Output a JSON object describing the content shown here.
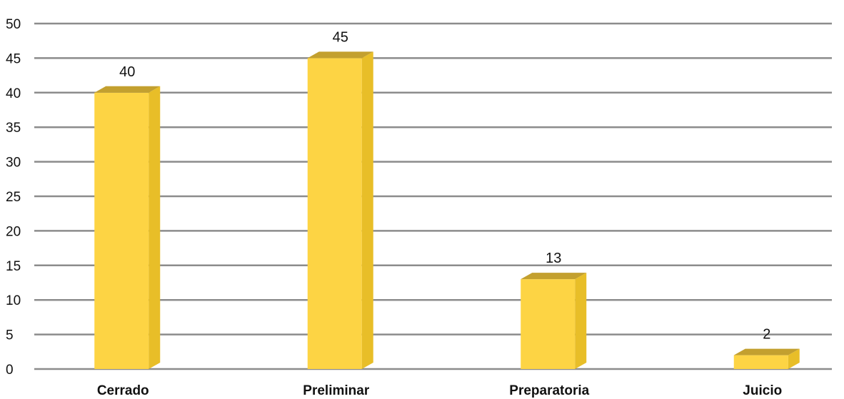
{
  "chart_data": {
    "type": "bar",
    "categories": [
      "Cerrado",
      "Preliminar",
      "Preparatoria",
      "Juicio"
    ],
    "values": [
      40,
      45,
      13,
      2
    ],
    "data_labels": [
      "40",
      "45",
      "13",
      "2"
    ],
    "title": "",
    "xlabel": "",
    "ylabel": "",
    "ylim": [
      0,
      50
    ],
    "yticks": [
      "0",
      "5",
      "10",
      "15",
      "20",
      "25",
      "30",
      "35",
      "40",
      "45",
      "50"
    ],
    "grid": true,
    "legend": "none",
    "colors": {
      "bar_front": "#FDD444",
      "bar_side": "#E8BE28",
      "bar_top": "#C3A02F",
      "grid": "#8C8C8C"
    }
  }
}
